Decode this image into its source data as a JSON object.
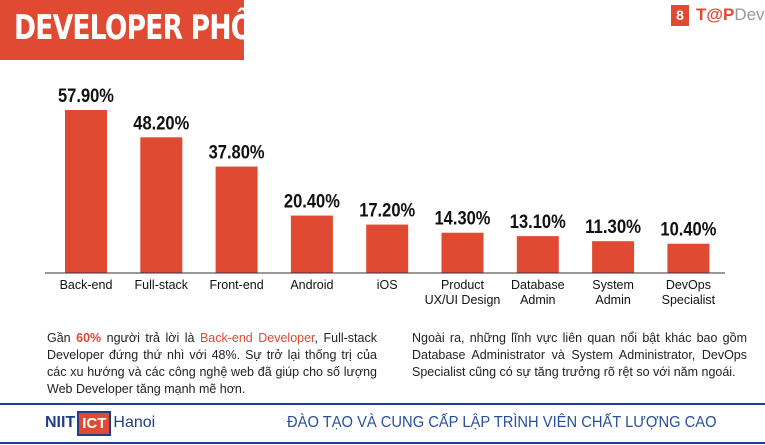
{
  "header": {
    "title": "DEVELOPER PHỔ BIẾN",
    "page_number": "8",
    "brand_part1": "T@P",
    "brand_part2": "Dev"
  },
  "chart_data": {
    "type": "bar",
    "categories": [
      "Back-end",
      "Full-stack",
      "Front-end",
      "Android",
      "iOS",
      "Product UX/UI Design",
      "Database Admin",
      "System Admin",
      "DevOps Specialist"
    ],
    "category_lines": [
      [
        "Back-end"
      ],
      [
        "Full-stack"
      ],
      [
        "Front-end"
      ],
      [
        "Android"
      ],
      [
        "iOS"
      ],
      [
        "Product",
        "UX/UI Design"
      ],
      [
        "Database",
        "Admin"
      ],
      [
        "System",
        "Admin"
      ],
      [
        "DevOps",
        "Specialist"
      ]
    ],
    "values": [
      57.9,
      48.2,
      37.8,
      20.4,
      17.2,
      14.3,
      13.1,
      11.3,
      10.4
    ],
    "data_labels": [
      "57.90%",
      "48.20%",
      "37.80%",
      "20.40%",
      "17.20%",
      "14.30%",
      "13.10%",
      "11.30%",
      "10.40%"
    ],
    "bar_color": "#e04a32",
    "grid": false,
    "ylim": [
      0,
      60
    ]
  },
  "text": {
    "p1_a": "Gần ",
    "p1_b": "60%",
    "p1_c": " người trả lời là ",
    "p1_d": "Back-end Developer",
    "p1_e": ", Full-stack Developer đứng thứ nhì với 48%. Sự trở lại thống trị của các xu hướng và các công nghệ web đã giúp cho số lượng Web Developer tăng mạnh mẽ hơn.",
    "p2": "Ngoài ra, những lĩnh vực liên quan nổi bật khác bao gồm Database Administrator và System Administrator, DevOps Specialist cũng có sự tăng trưởng rõ rệt so với năm ngoái."
  },
  "footer": {
    "logo_niit": "NIIT",
    "logo_ict": "ICT",
    "logo_hanoi": "Hanoi",
    "tagline": "ĐÀO TẠO VÀ CUNG CẤP LẬP TRÌNH VIÊN CHẤT LƯỢNG CAO"
  }
}
